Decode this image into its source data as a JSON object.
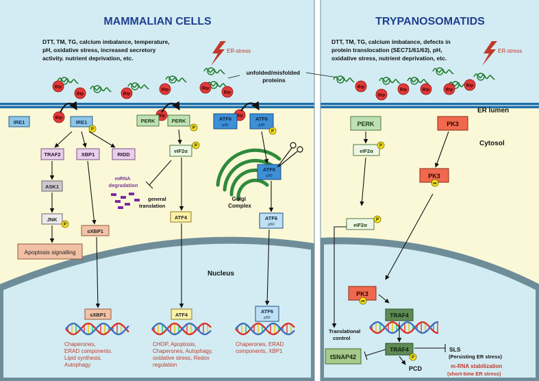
{
  "titles": {
    "left": "MAMMALIAN CELLS",
    "right": "TRYPANOSOMATIDS"
  },
  "stressors": {
    "left": [
      "DTT, TM, TG, calcium imbalance, temperature,",
      "pH, oxidative stress, increased secretory",
      "activity. nutrient deprivation, etc."
    ],
    "right": [
      "DTT, TM, TG, calcium imbalance, defects in",
      "protein translocation (SEC71/61/63), pH,",
      "oxidative stress, nutrient deprivation, etc."
    ]
  },
  "er_stress_label": "ER-stress",
  "unfolded_label": [
    "unfolded/misfolded",
    "proteins"
  ],
  "bip": "Bip",
  "phospho": "P",
  "phospho_9p": "9P",
  "compartments": {
    "er_lumen": "ER lumen",
    "cytosol": "Cytosol",
    "nucleus": "Nucleus",
    "golgi": [
      "Golgi",
      "Complex"
    ]
  },
  "sensors": {
    "ire1": "IRE1",
    "perk": "PERK",
    "atf6": "ATF6",
    "p90": "p90",
    "p50": "p50",
    "pk3": "PK3"
  },
  "nodes": {
    "traf2": "TRAF2",
    "xbp1": "XBP1",
    "ridd": "RIDD",
    "ask1": "ASK1",
    "jnk": "JNK",
    "sxbp1": "sXBP1",
    "eif2a": "eIF2α",
    "atf4": "ATF4",
    "traf4": "TRAF4",
    "tsnap42": "tSNAP42",
    "mrna_deg": [
      "mRNA",
      "degradation"
    ],
    "general_translation": [
      "general",
      "translation"
    ],
    "apoptosis": "Apoptosis signalling",
    "translational_control": [
      "Translational",
      "control"
    ],
    "sls": "SLS",
    "sls_note": "(Persisting ER stress)",
    "pcd": "PCD",
    "mrna_stab": "m-RNA stabilization",
    "mrna_stab_note": "(short-time ER stress)"
  },
  "outcomes": {
    "sxbp1": [
      "Chaperones,",
      "ERAD components.",
      "Lipid synthesis,",
      "Autophagy"
    ],
    "atf4": [
      "CHOP, Apoptosis,",
      "Chaperones, Autophagy,",
      "oxidative stress, Redox",
      "regulation"
    ],
    "atf6": [
      "Chaperones, ERAD",
      "components, XBP1"
    ]
  },
  "colors": {
    "lumen": "#d3ecf3",
    "cytosol": "#fbf8d8",
    "membrane": "#1f6fa8",
    "accent_red": "#c0392b",
    "bip": "#e23a3a",
    "dna_a": "#d9302a",
    "dna_b": "#3a6ec2"
  }
}
